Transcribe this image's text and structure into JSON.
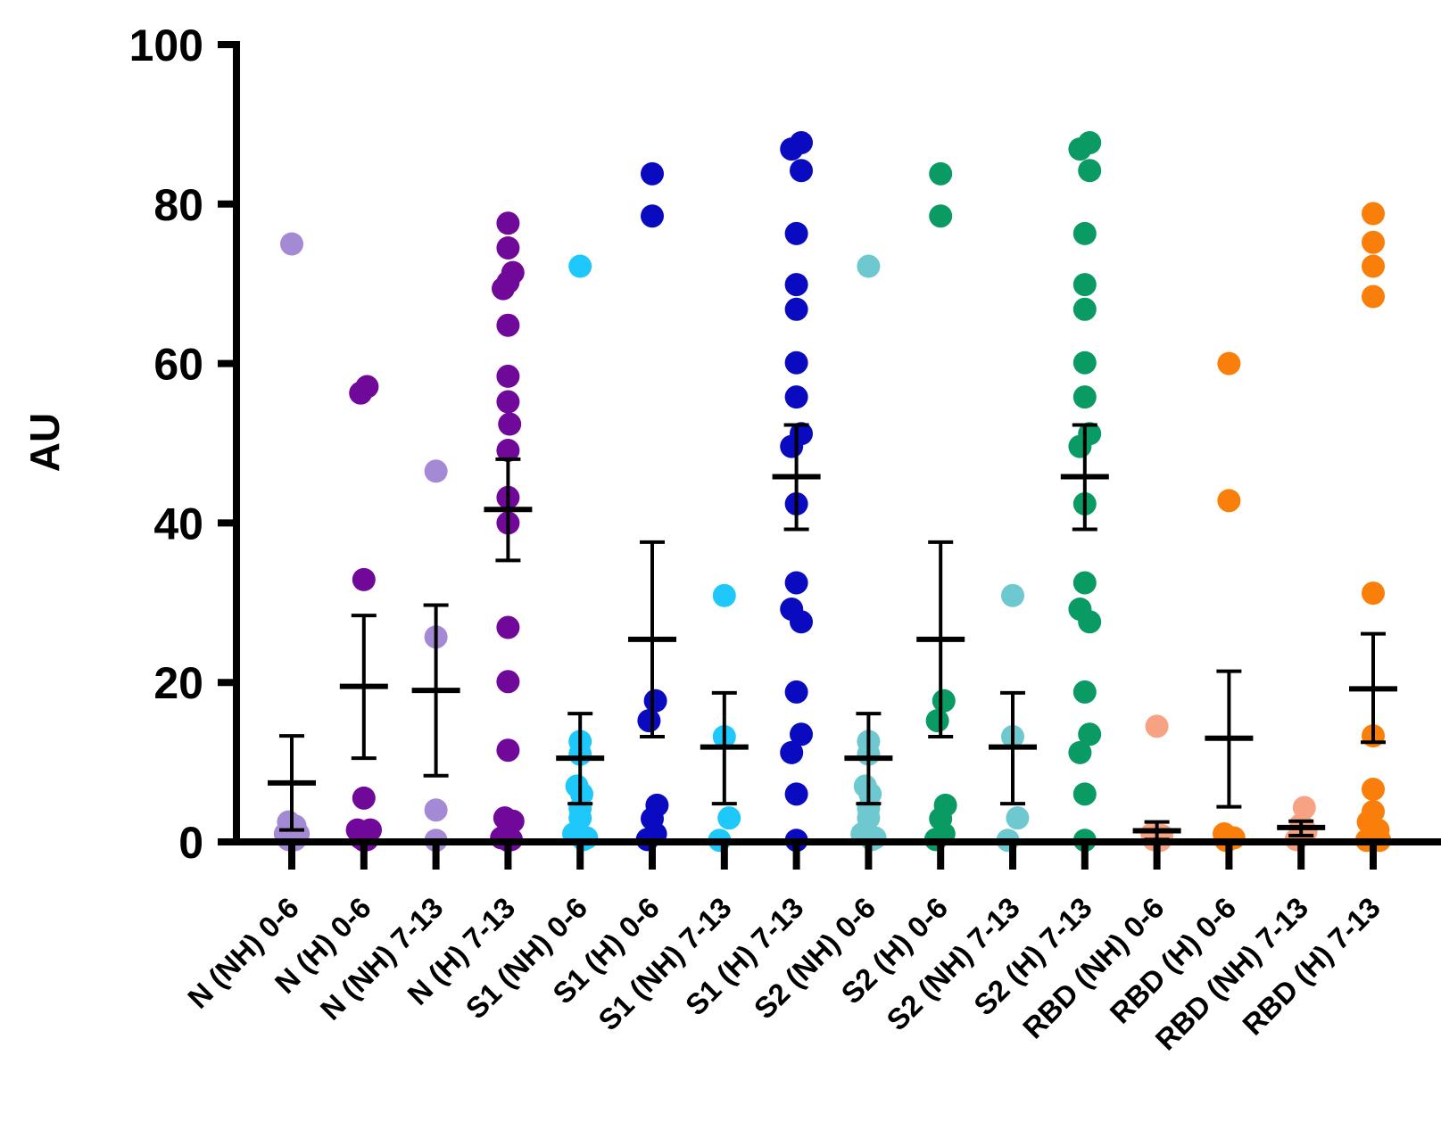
{
  "chart_data": {
    "type": "scatter",
    "title": "",
    "xlabel": "",
    "ylabel": "AU",
    "ylim": [
      0,
      100
    ],
    "yticks": [
      "0",
      "20",
      "40",
      "60",
      "80",
      "100"
    ],
    "categories": [
      "N (NH) 0-6",
      "N (H) 0-6",
      "N (NH) 7-13",
      "N (H) 7-13",
      "S1 (NH) 0-6",
      "S1 (H) 0-6",
      "S1 (NH) 7-13",
      "S1 (H) 7-13",
      "S2 (NH) 0-6",
      "S2 (H) 0-6",
      "S2 (NH) 7-13",
      "S2 (H) 7-13",
      "RBD (NH) 0-6",
      "RBD (H) 0-6",
      "RBD (NH) 7-13",
      "RBD (H) 7-13"
    ],
    "colors": [
      "#a48ad4",
      "#70089a",
      "#a48ad4",
      "#70089a",
      "#1ec8fa",
      "#0a0ac0",
      "#1ec8fa",
      "#0a0ac0",
      "#6ec8d0",
      "#0a9a64",
      "#6ec8d0",
      "#0a9a64",
      "#f8a284",
      "#fa7f0a",
      "#f8a284",
      "#fa7f0a"
    ],
    "series": [
      {
        "name": "N (NH) 0-6",
        "mean": 7.4,
        "sem_low": 1.5,
        "sem_high": 13.3,
        "points": [
          [
            0,
            75.0
          ],
          [
            -0.1,
            2.5
          ],
          [
            0.1,
            2.0
          ],
          [
            0,
            1.5
          ],
          [
            -0.2,
            1.0
          ],
          [
            0.2,
            1.0
          ],
          [
            -0.1,
            0.3
          ],
          [
            0.1,
            0.3
          ],
          [
            0,
            0.2
          ]
        ]
      },
      {
        "name": "N (H) 0-6",
        "mean": 19.5,
        "sem_low": 10.5,
        "sem_high": 28.4,
        "points": [
          [
            -0.1,
            56.3
          ],
          [
            0.1,
            57.1
          ],
          [
            0,
            32.9
          ],
          [
            0,
            5.5
          ],
          [
            -0.2,
            1.5
          ],
          [
            0.2,
            1.5
          ],
          [
            -0.1,
            0.5
          ],
          [
            0.1,
            0.3
          ],
          [
            0,
            0.2
          ]
        ]
      },
      {
        "name": "N (NH) 7-13",
        "mean": 19.0,
        "sem_low": 8.3,
        "sem_high": 29.7,
        "points": [
          [
            0,
            46.5
          ],
          [
            0,
            25.7
          ],
          [
            0,
            4.0
          ],
          [
            0,
            0.2
          ]
        ]
      },
      {
        "name": "N (H) 7-13",
        "mean": 41.7,
        "sem_low": 35.3,
        "sem_high": 48.0,
        "points": [
          [
            0,
            77.6
          ],
          [
            0,
            74.5
          ],
          [
            -0.15,
            69.4
          ],
          [
            0.15,
            71.4
          ],
          [
            0,
            70.2
          ],
          [
            0,
            64.8
          ],
          [
            0,
            58.4
          ],
          [
            0,
            55.2
          ],
          [
            0.05,
            52.4
          ],
          [
            0,
            49.1
          ],
          [
            0,
            43.2
          ],
          [
            0,
            40.0
          ],
          [
            0,
            26.9
          ],
          [
            0,
            20.1
          ],
          [
            0,
            11.5
          ],
          [
            -0.1,
            3.0
          ],
          [
            0.15,
            2.6
          ],
          [
            -0.2,
            0.5
          ],
          [
            0.1,
            0.3
          ],
          [
            0,
            0.2
          ]
        ]
      },
      {
        "name": "S1 (NH) 0-6",
        "mean": 10.5,
        "sem_low": 4.8,
        "sem_high": 16.1,
        "points": [
          [
            0,
            72.2
          ],
          [
            0,
            12.6
          ],
          [
            0,
            11.0
          ],
          [
            -0.1,
            7.0
          ],
          [
            0.05,
            6.0
          ],
          [
            0,
            4.2
          ],
          [
            0,
            3.0
          ],
          [
            -0.2,
            1.0
          ],
          [
            0.2,
            0.5
          ],
          [
            0.1,
            0.3
          ]
        ]
      },
      {
        "name": "S1 (H) 0-6",
        "mean": 25.4,
        "sem_low": 13.2,
        "sem_high": 37.6,
        "points": [
          [
            0,
            83.8
          ],
          [
            0,
            78.5
          ],
          [
            0.1,
            17.7
          ],
          [
            -0.1,
            15.2
          ],
          [
            0.15,
            4.6
          ],
          [
            0,
            2.9
          ],
          [
            0.1,
            1.0
          ],
          [
            -0.15,
            0.3
          ]
        ]
      },
      {
        "name": "S1 (NH) 7-13",
        "mean": 11.9,
        "sem_low": 4.8,
        "sem_high": 18.7,
        "points": [
          [
            0,
            30.9
          ],
          [
            0,
            13.2
          ],
          [
            0.15,
            3.0
          ],
          [
            -0.15,
            0.2
          ]
        ]
      },
      {
        "name": "S1 (H) 7-13",
        "mean": 45.8,
        "sem_low": 39.2,
        "sem_high": 52.3,
        "points": [
          [
            -0.15,
            86.9
          ],
          [
            0.15,
            87.7
          ],
          [
            0.15,
            84.2
          ],
          [
            0,
            76.3
          ],
          [
            0,
            69.9
          ],
          [
            0,
            66.8
          ],
          [
            0,
            60.1
          ],
          [
            0,
            55.8
          ],
          [
            0.15,
            51.2
          ],
          [
            -0.15,
            49.6
          ],
          [
            0,
            42.4
          ],
          [
            0,
            32.5
          ],
          [
            -0.15,
            29.2
          ],
          [
            0.15,
            27.6
          ],
          [
            0,
            18.8
          ],
          [
            -0.15,
            11.2
          ],
          [
            0.15,
            13.5
          ],
          [
            0,
            6.0
          ],
          [
            0,
            0.2
          ]
        ]
      },
      {
        "name": "S2 (NH) 0-6",
        "mean": 10.5,
        "sem_low": 4.8,
        "sem_high": 16.1,
        "points": [
          [
            0,
            72.2
          ],
          [
            0,
            12.6
          ],
          [
            0,
            11.0
          ],
          [
            -0.1,
            7.0
          ],
          [
            0.05,
            6.0
          ],
          [
            0,
            4.2
          ],
          [
            0,
            3.0
          ],
          [
            -0.2,
            1.0
          ],
          [
            0.2,
            0.5
          ],
          [
            0.1,
            0.3
          ]
        ]
      },
      {
        "name": "S2 (H) 0-6",
        "mean": 25.4,
        "sem_low": 13.2,
        "sem_high": 37.6,
        "points": [
          [
            0,
            83.8
          ],
          [
            0,
            78.5
          ],
          [
            0.1,
            17.7
          ],
          [
            -0.1,
            15.2
          ],
          [
            0.15,
            4.6
          ],
          [
            0,
            2.9
          ],
          [
            0.1,
            1.0
          ],
          [
            -0.15,
            0.3
          ]
        ]
      },
      {
        "name": "S2 (NH) 7-13",
        "mean": 11.9,
        "sem_low": 4.8,
        "sem_high": 18.7,
        "points": [
          [
            0,
            30.9
          ],
          [
            0,
            13.2
          ],
          [
            0.15,
            3.0
          ],
          [
            -0.15,
            0.2
          ]
        ]
      },
      {
        "name": "S2 (H) 7-13",
        "mean": 45.8,
        "sem_low": 39.2,
        "sem_high": 52.3,
        "points": [
          [
            -0.15,
            86.9
          ],
          [
            0.15,
            87.7
          ],
          [
            0.15,
            84.2
          ],
          [
            0,
            76.3
          ],
          [
            0,
            69.9
          ],
          [
            0,
            66.8
          ],
          [
            0,
            60.1
          ],
          [
            0,
            55.8
          ],
          [
            0.15,
            51.2
          ],
          [
            -0.15,
            49.6
          ],
          [
            0,
            42.4
          ],
          [
            0,
            32.5
          ],
          [
            -0.15,
            29.2
          ],
          [
            0.15,
            27.6
          ],
          [
            0,
            18.8
          ],
          [
            -0.15,
            11.2
          ],
          [
            0.15,
            13.5
          ],
          [
            0,
            6.0
          ],
          [
            0,
            0.2
          ]
        ]
      },
      {
        "name": "RBD (NH) 0-6",
        "mean": 1.4,
        "sem_low": 0.3,
        "sem_high": 2.5,
        "points": [
          [
            0,
            14.5
          ],
          [
            -0.15,
            1.0
          ],
          [
            0.15,
            0.8
          ],
          [
            0,
            0.5
          ],
          [
            -0.1,
            0.3
          ],
          [
            0.1,
            0.2
          ]
        ]
      },
      {
        "name": "RBD (H) 0-6",
        "mean": 13.0,
        "sem_low": 4.4,
        "sem_high": 21.4,
        "points": [
          [
            0,
            60.0
          ],
          [
            0,
            42.8
          ],
          [
            -0.15,
            1.0
          ],
          [
            0.15,
            0.5
          ],
          [
            0,
            0.3
          ],
          [
            -0.1,
            0.2
          ]
        ]
      },
      {
        "name": "RBD (NH) 7-13",
        "mean": 1.8,
        "sem_low": 0.8,
        "sem_high": 2.6,
        "points": [
          [
            0.1,
            4.3
          ],
          [
            0,
            2.2
          ],
          [
            0.15,
            1.3
          ],
          [
            -0.15,
            0.3
          ]
        ]
      },
      {
        "name": "RBD (H) 7-13",
        "mean": 19.2,
        "sem_low": 12.5,
        "sem_high": 26.1,
        "points": [
          [
            0,
            78.8
          ],
          [
            0,
            75.2
          ],
          [
            0,
            72.2
          ],
          [
            0,
            68.4
          ],
          [
            0,
            31.2
          ],
          [
            0,
            13.3
          ],
          [
            0,
            6.6
          ],
          [
            0,
            3.8
          ],
          [
            -0.15,
            2.5
          ],
          [
            0.15,
            1.5
          ],
          [
            -0.1,
            0.5
          ],
          [
            0.1,
            0.3
          ],
          [
            -0.2,
            0.2
          ],
          [
            0.2,
            0.2
          ]
        ]
      }
    ]
  }
}
